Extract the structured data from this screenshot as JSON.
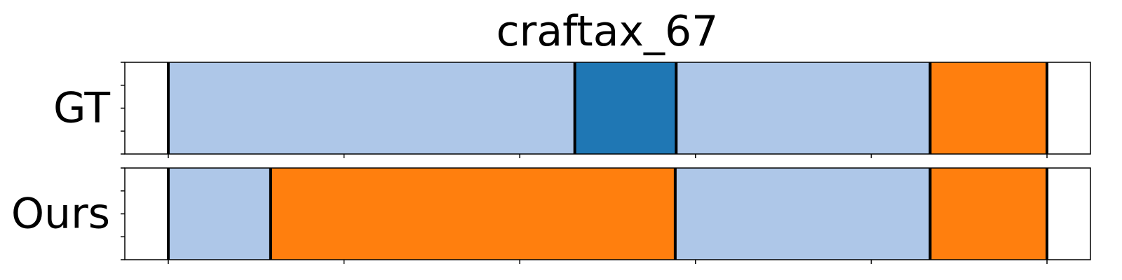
{
  "chart_data": {
    "type": "bar",
    "title": "craftax_67",
    "xlim": [
      0,
      1
    ],
    "rows": [
      {
        "label": "GT",
        "segments": [
          {
            "start": 0.0,
            "end": 0.045,
            "color": "#ffffff"
          },
          {
            "start": 0.045,
            "end": 0.466,
            "color": "#aec7e8"
          },
          {
            "start": 0.466,
            "end": 0.571,
            "color": "#1f77b4"
          },
          {
            "start": 0.571,
            "end": 0.834,
            "color": "#aec7e8"
          },
          {
            "start": 0.834,
            "end": 0.955,
            "color": "#ff7f0e"
          },
          {
            "start": 0.955,
            "end": 1.0,
            "color": "#ffffff"
          }
        ],
        "boundaries": [
          0.045,
          0.466,
          0.571,
          0.834,
          0.955
        ]
      },
      {
        "label": "Ours",
        "segments": [
          {
            "start": 0.0,
            "end": 0.045,
            "color": "#ffffff"
          },
          {
            "start": 0.045,
            "end": 0.151,
            "color": "#aec7e8"
          },
          {
            "start": 0.151,
            "end": 0.57,
            "color": "#ff7f0e"
          },
          {
            "start": 0.57,
            "end": 0.834,
            "color": "#aec7e8"
          },
          {
            "start": 0.834,
            "end": 0.955,
            "color": "#ff7f0e"
          },
          {
            "start": 0.955,
            "end": 1.0,
            "color": "#ffffff"
          }
        ],
        "boundaries": [
          0.045,
          0.151,
          0.57,
          0.834,
          0.955
        ]
      }
    ],
    "x_ticks": [
      0.045,
      0.227,
      0.409,
      0.591,
      0.773,
      0.955
    ],
    "y_ticks": [
      0,
      0.25,
      0.5,
      0.75,
      1.0
    ],
    "grid": false
  }
}
